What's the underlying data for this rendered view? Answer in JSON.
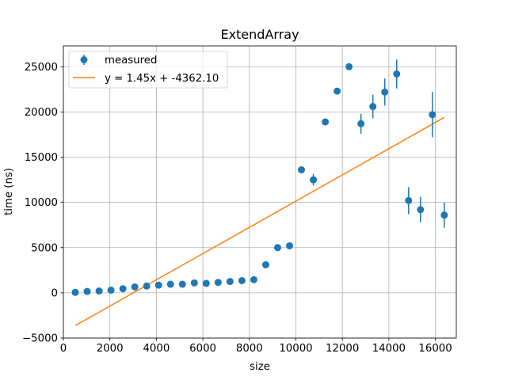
{
  "chart_data": {
    "type": "scatter",
    "title": "ExtendArray",
    "xlabel": "size",
    "ylabel": "time (ns)",
    "xlim": [
      0,
      16900
    ],
    "ylim": [
      -5000,
      27300
    ],
    "xticks": [
      0,
      2000,
      4000,
      6000,
      8000,
      10000,
      12000,
      14000,
      16000
    ],
    "yticks": [
      -5000,
      0,
      5000,
      10000,
      15000,
      20000,
      25000
    ],
    "grid": true,
    "legend_position": "top-left",
    "colors": {
      "measured": "#1f77b4",
      "fit": "#ff7f0e"
    },
    "series": [
      {
        "name": "measured",
        "kind": "errorbar",
        "points": [
          {
            "x": 512,
            "y": 50,
            "err": 0
          },
          {
            "x": 1024,
            "y": 150,
            "err": 0
          },
          {
            "x": 1536,
            "y": 200,
            "err": 0
          },
          {
            "x": 2048,
            "y": 300,
            "err": 0
          },
          {
            "x": 2560,
            "y": 450,
            "err": 0
          },
          {
            "x": 3072,
            "y": 650,
            "err": 0
          },
          {
            "x": 3584,
            "y": 750,
            "err": 0
          },
          {
            "x": 4096,
            "y": 850,
            "err": 0
          },
          {
            "x": 4608,
            "y": 950,
            "err": 0
          },
          {
            "x": 5120,
            "y": 950,
            "err": 0
          },
          {
            "x": 5632,
            "y": 1100,
            "err": 0
          },
          {
            "x": 6144,
            "y": 1050,
            "err": 0
          },
          {
            "x": 6656,
            "y": 1150,
            "err": 0
          },
          {
            "x": 7168,
            "y": 1250,
            "err": 0
          },
          {
            "x": 7680,
            "y": 1350,
            "err": 0
          },
          {
            "x": 8192,
            "y": 1450,
            "err": 0
          },
          {
            "x": 8704,
            "y": 3100,
            "err": 0
          },
          {
            "x": 9216,
            "y": 5000,
            "err": 0
          },
          {
            "x": 9728,
            "y": 5200,
            "err": 0
          },
          {
            "x": 10240,
            "y": 13600,
            "err": 0
          },
          {
            "x": 10752,
            "y": 12500,
            "err": 650
          },
          {
            "x": 11264,
            "y": 18900,
            "err": 0
          },
          {
            "x": 11776,
            "y": 22300,
            "err": 0
          },
          {
            "x": 12288,
            "y": 25000,
            "err": 0
          },
          {
            "x": 12800,
            "y": 18700,
            "err": 1100
          },
          {
            "x": 13312,
            "y": 20600,
            "err": 1300
          },
          {
            "x": 13824,
            "y": 22200,
            "err": 1500
          },
          {
            "x": 14336,
            "y": 24200,
            "err": 1600
          },
          {
            "x": 14848,
            "y": 10200,
            "err": 1500
          },
          {
            "x": 15360,
            "y": 9200,
            "err": 1400
          },
          {
            "x": 15872,
            "y": 19700,
            "err": 2500
          },
          {
            "x": 16384,
            "y": 8600,
            "err": 1400
          }
        ]
      },
      {
        "name": "y = 1.45x + -4362.10",
        "kind": "line",
        "slope": 1.45,
        "intercept": -4362.1,
        "x_range": [
          512,
          16384
        ]
      }
    ]
  }
}
